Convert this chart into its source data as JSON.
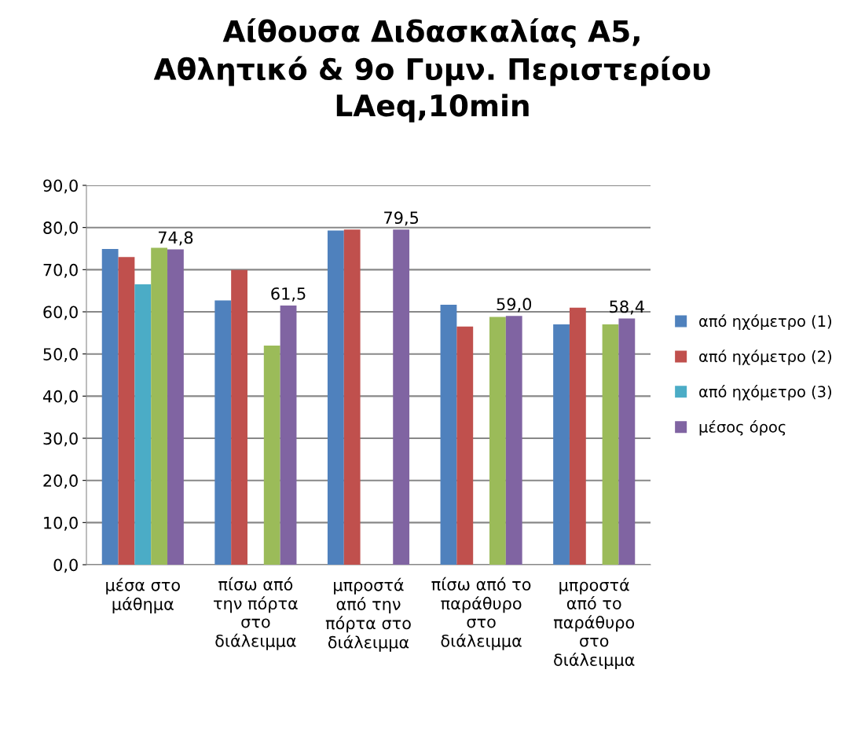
{
  "chart_data": {
    "type": "bar",
    "title": "Αίθουσα Διδασκαλίας Α5,\nΑθλητικό & 9ο Γυμν. Περιστερίου\nLAeq,10min",
    "categories": [
      "μέσα στο\nμάθημα",
      "πίσω από\nτην πόρτα\nστο\nδιάλειμμα",
      "μπροστά\nαπό την\nπόρτα στο\nδιάλειμμα",
      "πίσω από το\nπαράθυρο\nστο\nδιάλειμμα",
      "μπροστά\nαπό το\nπαράθυρο\nστο\nδιάλειμμα"
    ],
    "series": [
      {
        "name": "από ηχόμετρο (1)",
        "color": "#4f81bd",
        "values": [
          74.9,
          62.7,
          79.3,
          61.7,
          57.0
        ]
      },
      {
        "name": "από ηχόμετρο (2)",
        "color": "#c0504d",
        "values": [
          73.0,
          69.9,
          79.5,
          56.5,
          61.0
        ]
      },
      {
        "name": "από ηχόμετρο (3)",
        "color": "#4bacc6",
        "values": [
          66.5,
          null,
          null,
          null,
          null
        ]
      },
      {
        "color": "#9bbb59",
        "values": [
          75.2,
          52.0,
          null,
          58.8,
          57.0
        ]
      },
      {
        "name": "μέσος όρος",
        "color": "#8064a2",
        "values": [
          74.8,
          61.5,
          79.5,
          59.0,
          58.4
        ],
        "value_labels": [
          "74,8",
          "61,5",
          "79,5",
          "59,0",
          "58,4"
        ]
      }
    ],
    "ylim": [
      0,
      90
    ],
    "yticks": [
      {
        "value": 0,
        "label": "0,0"
      },
      {
        "value": 10,
        "label": "10,0"
      },
      {
        "value": 20,
        "label": "20,0"
      },
      {
        "value": 30,
        "label": "30,0"
      },
      {
        "value": 40,
        "label": "40,0"
      },
      {
        "value": 50,
        "label": "50,0"
      },
      {
        "value": 60,
        "label": "60,0"
      },
      {
        "value": 70,
        "label": "70,0"
      },
      {
        "value": 80,
        "label": "80,0"
      },
      {
        "value": 90,
        "label": "90,0"
      }
    ],
    "grid": "y",
    "legend": "right"
  }
}
